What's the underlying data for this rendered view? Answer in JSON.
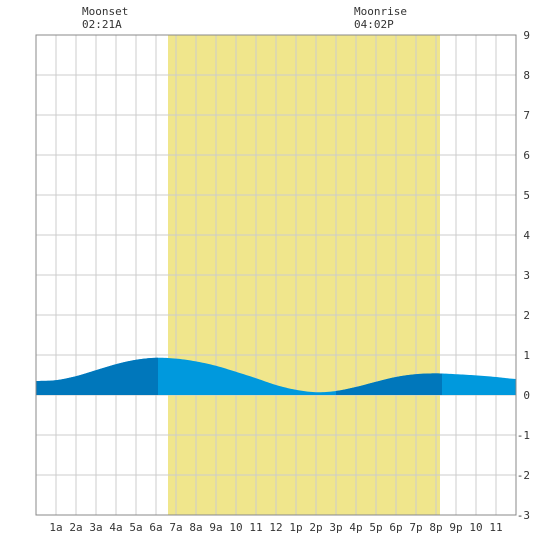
{
  "moon": {
    "moonset_label": "Moonset",
    "moonset_time": "02:21A",
    "moonrise_label": "Moonrise",
    "moonrise_time": "04:02P"
  },
  "chart_data": {
    "type": "area",
    "title": "",
    "xlabel": "",
    "ylabel": "",
    "xlim": [
      0,
      24
    ],
    "ylim": [
      -3,
      9
    ],
    "grid": true,
    "x_tick_values": [
      1,
      2,
      3,
      4,
      5,
      6,
      7,
      8,
      9,
      10,
      11,
      12,
      13,
      14,
      15,
      16,
      17,
      18,
      19,
      20,
      21,
      22,
      23
    ],
    "x_tick_labels": [
      "1a",
      "2a",
      "3a",
      "4a",
      "5a",
      "6a",
      "7a",
      "8a",
      "9a",
      "10",
      "11",
      "12",
      "1p",
      "2p",
      "3p",
      "4p",
      "5p",
      "6p",
      "7p",
      "8p",
      "9p",
      "10",
      "11"
    ],
    "y_ticks": [
      -3,
      -2,
      -1,
      0,
      1,
      2,
      3,
      4,
      5,
      6,
      7,
      8,
      9
    ],
    "daylight": {
      "start_hour": 6.6,
      "end_hour": 20.2,
      "color": "#f0e68c"
    },
    "colors": {
      "tide_light": "#0099dd",
      "tide_dark": "#0077bb",
      "grid": "#cccccc",
      "frame": "#888888"
    },
    "series": [
      {
        "x": [
          0,
          1,
          2,
          3,
          4,
          5,
          6,
          7,
          8,
          9,
          10,
          11,
          12,
          13,
          14,
          15,
          16,
          17,
          18,
          19,
          20,
          21,
          22,
          23,
          24
        ],
        "values": [
          0.35,
          0.37,
          0.47,
          0.62,
          0.77,
          0.88,
          0.93,
          0.91,
          0.84,
          0.73,
          0.58,
          0.42,
          0.25,
          0.13,
          0.07,
          0.1,
          0.2,
          0.33,
          0.45,
          0.52,
          0.54,
          0.52,
          0.49,
          0.45,
          0.4
        ]
      }
    ],
    "dark_bands": [
      [
        0,
        0.7
      ],
      [
        0.7,
        6.1
      ],
      [
        15.0,
        20.3
      ]
    ]
  }
}
